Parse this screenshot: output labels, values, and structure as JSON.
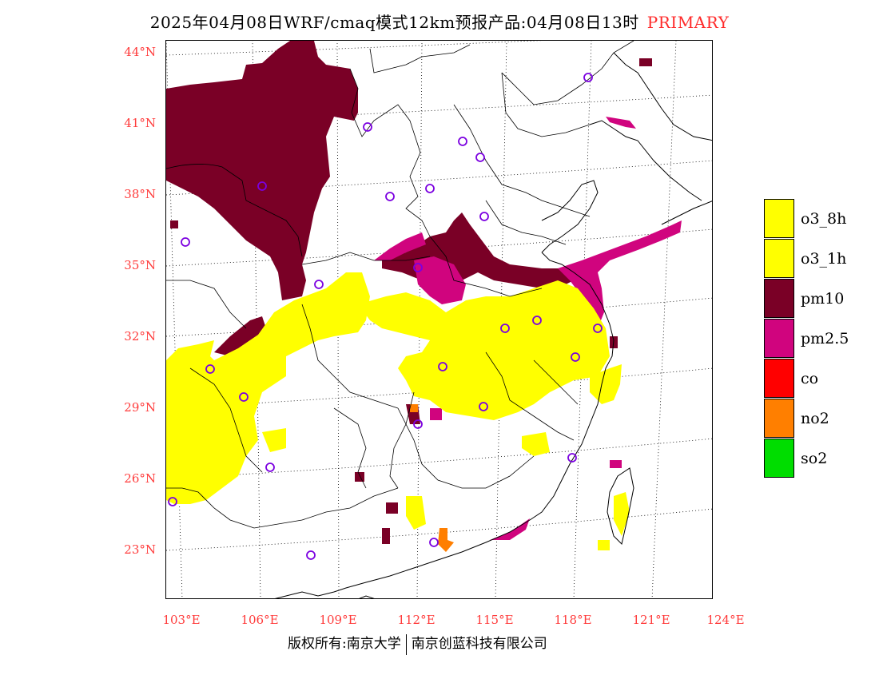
{
  "title": {
    "main": "2025年04月08日WRF/cmaq模式12km预报产品:04月08日13时",
    "tag": "PRIMARY"
  },
  "axes": {
    "latitudes": [
      "44°N",
      "41°N",
      "38°N",
      "35°N",
      "32°N",
      "29°N",
      "26°N",
      "23°N"
    ],
    "longitudes": [
      "103°E",
      "106°E",
      "109°E",
      "112°E",
      "115°E",
      "118°E",
      "121°E",
      "124°E"
    ]
  },
  "legend": {
    "items": [
      {
        "label": "o3_8h",
        "color": "#ffff00"
      },
      {
        "label": "o3_1h",
        "color": "#ffff00"
      },
      {
        "label": "pm10",
        "color": "#7a0026"
      },
      {
        "label": "pm2.5",
        "color": "#d0047e"
      },
      {
        "label": "co",
        "color": "#ff0000"
      },
      {
        "label": "no2",
        "color": "#ff7f00"
      },
      {
        "label": "so2",
        "color": "#00dd00"
      }
    ]
  },
  "map": {
    "pollutant_colors": {
      "o3": "#ffff00",
      "pm10": "#7a0026",
      "pm25": "#d0047e",
      "no2": "#ff7f00"
    },
    "station_color": "#7b00e0"
  },
  "copyright": {
    "left": "版权所有:南京大学",
    "right": "南京创蓝科技有限公司"
  }
}
